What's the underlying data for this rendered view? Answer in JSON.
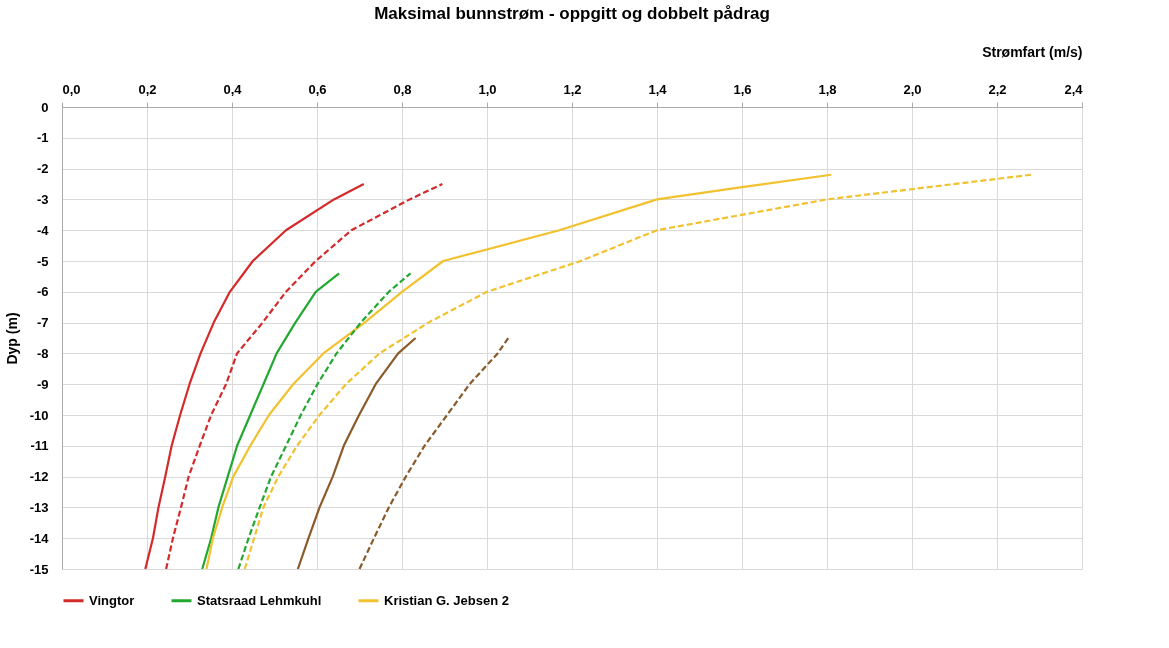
{
  "chart_data": {
    "type": "line",
    "title": "Maksimal bunnstrøm - oppgitt og dobbelt pådrag",
    "xlabel": "Strømfart (m/s)",
    "ylabel": "Dyp (m)",
    "xlim": [
      0,
      2.4
    ],
    "ylim": [
      -15,
      0
    ],
    "xticks": [
      {
        "value": 0,
        "label": "0,0"
      },
      {
        "value": 0.2,
        "label": "0,2"
      },
      {
        "value": 0.4,
        "label": "0,4"
      },
      {
        "value": 0.6,
        "label": "0,6"
      },
      {
        "value": 0.8,
        "label": "0,8"
      },
      {
        "value": 1.0,
        "label": "1,0"
      },
      {
        "value": 1.2,
        "label": "1,2"
      },
      {
        "value": 1.4,
        "label": "1,4"
      },
      {
        "value": 1.6,
        "label": "1,6"
      },
      {
        "value": 1.8,
        "label": "1,8"
      },
      {
        "value": 2.0,
        "label": "2,0"
      },
      {
        "value": 2.2,
        "label": "2,2"
      },
      {
        "value": 2.4,
        "label": "2,4"
      }
    ],
    "yticks": [
      0,
      -1,
      -2,
      -3,
      -4,
      -5,
      -6,
      -7,
      -8,
      -9,
      -10,
      -11,
      -12,
      -13,
      -14,
      -15
    ],
    "grid": true,
    "legend": "bottom",
    "marker": "none",
    "line_style": "solid",
    "series": [
      {
        "name": "Vingtor",
        "color": "#d42a2a",
        "x": [
          0.196,
          0.214,
          0.227,
          0.243,
          0.258,
          0.278,
          0.3,
          0.326,
          0.357,
          0.395,
          0.449,
          0.527,
          0.64,
          0.71
        ],
        "values": [
          -15,
          -14,
          -13,
          -12,
          -11,
          -10,
          -9,
          -8,
          -7,
          -6,
          -5,
          -4,
          -3,
          -2.5
        ]
      },
      {
        "color": "#d42a2a",
        "line_style": "dashed",
        "x": [
          0.245,
          0.261,
          0.28,
          0.298,
          0.324,
          0.351,
          0.386,
          0.412,
          0.472,
          0.527,
          0.597,
          0.681,
          0.818,
          0.895
        ],
        "values": [
          -15,
          -14,
          -13,
          -12,
          -11,
          -10,
          -9,
          -8,
          -7,
          -6,
          -5,
          -4,
          -3,
          -2.5
        ]
      },
      {
        "name": "Statsraad Lehmkuhl",
        "color": "#22a830",
        "x": [
          0.33,
          0.351,
          0.368,
          0.39,
          0.412,
          0.443,
          0.474,
          0.505,
          0.549,
          0.597,
          0.652
        ],
        "values": [
          -15,
          -14,
          -13,
          -12,
          -11,
          -10,
          -9,
          -8,
          -7,
          -6,
          -5.4
        ]
      },
      {
        "color": "#22a830",
        "line_style": "dashed",
        "x": [
          0.415,
          0.439,
          0.465,
          0.492,
          0.527,
          0.562,
          0.601,
          0.646,
          0.703,
          0.769,
          0.82
        ],
        "values": [
          -15,
          -14,
          -13,
          -12,
          -11,
          -10,
          -9,
          -8,
          -7,
          -6,
          -5.4
        ]
      },
      {
        "name": "Kristian G. Jebsen 2",
        "color": "#f2c12e",
        "x": [
          0.34,
          0.355,
          0.377,
          0.403,
          0.443,
          0.487,
          0.544,
          0.615,
          0.712,
          0.8,
          0.897,
          1.17,
          1.4,
          1.6,
          1.81
        ],
        "values": [
          -15,
          -14,
          -13,
          -12,
          -11,
          -10,
          -9,
          -8,
          -7,
          -6,
          -5,
          -4,
          -3,
          -2.6,
          -2.2
        ]
      },
      {
        "color": "#f2c12e",
        "line_style": "dashed",
        "x": [
          0.43,
          0.452,
          0.474,
          0.509,
          0.553,
          0.606,
          0.668,
          0.747,
          0.862,
          1.0,
          1.22,
          1.4,
          1.8,
          2.28
        ],
        "values": [
          -15,
          -14,
          -13,
          -12,
          -11,
          -10,
          -9,
          -8,
          -7,
          -6,
          -5,
          -4,
          -3,
          -2.2
        ]
      },
      {
        "color": "#8b5a2b",
        "x": [
          0.555,
          0.58,
          0.606,
          0.637,
          0.663,
          0.699,
          0.738,
          0.791,
          0.832
        ],
        "values": [
          -15,
          -14,
          -13,
          -12,
          -11,
          -10,
          -9,
          -8,
          -7.5
        ]
      },
      {
        "color": "#8b5a2b",
        "line_style": "dashed",
        "x": [
          0.7,
          0.734,
          0.769,
          0.809,
          0.853,
          0.906,
          0.959,
          1.025,
          1.05
        ],
        "values": [
          -15,
          -14,
          -13,
          -12,
          -11,
          -10,
          -9,
          -8,
          -7.5
        ]
      }
    ]
  }
}
